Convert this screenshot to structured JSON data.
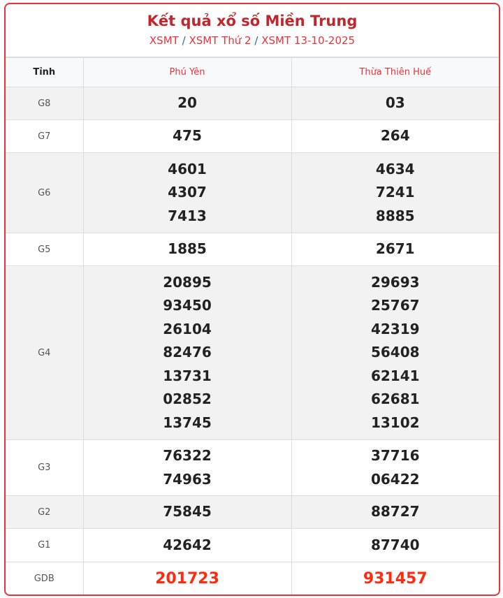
{
  "header": {
    "title": "Kết quả xổ số Miền Trung",
    "breadcrumb": [
      "XSMT",
      "XSMT Thứ 2",
      "XSMT 13-10-2025"
    ],
    "separator": "/"
  },
  "table": {
    "columns": [
      "Tỉnh",
      "Phú Yên",
      "Thừa Thiên Huế"
    ],
    "rows": [
      {
        "label": "G8",
        "values": [
          [
            "20"
          ],
          [
            "03"
          ]
        ]
      },
      {
        "label": "G7",
        "values": [
          [
            "475"
          ],
          [
            "264"
          ]
        ]
      },
      {
        "label": "G6",
        "values": [
          [
            "4601",
            "4307",
            "7413"
          ],
          [
            "4634",
            "7241",
            "8885"
          ]
        ]
      },
      {
        "label": "G5",
        "values": [
          [
            "1885"
          ],
          [
            "2671"
          ]
        ]
      },
      {
        "label": "G4",
        "values": [
          [
            "20895",
            "93450",
            "26104",
            "82476",
            "13731",
            "02852",
            "13745"
          ],
          [
            "29693",
            "25767",
            "42319",
            "56408",
            "62141",
            "62681",
            "13102"
          ]
        ]
      },
      {
        "label": "G3",
        "values": [
          [
            "76322",
            "74963"
          ],
          [
            "37716",
            "06422"
          ]
        ]
      },
      {
        "label": "G2",
        "values": [
          [
            "75845"
          ],
          [
            "88727"
          ]
        ]
      },
      {
        "label": "G1",
        "values": [
          [
            "42642"
          ],
          [
            "87740"
          ]
        ]
      },
      {
        "label": "GDB",
        "values": [
          [
            "201723"
          ],
          [
            "931457"
          ]
        ]
      }
    ]
  },
  "colors": {
    "accent": "#e8323c",
    "title": "#c0272d",
    "special": "#ff2a10"
  }
}
